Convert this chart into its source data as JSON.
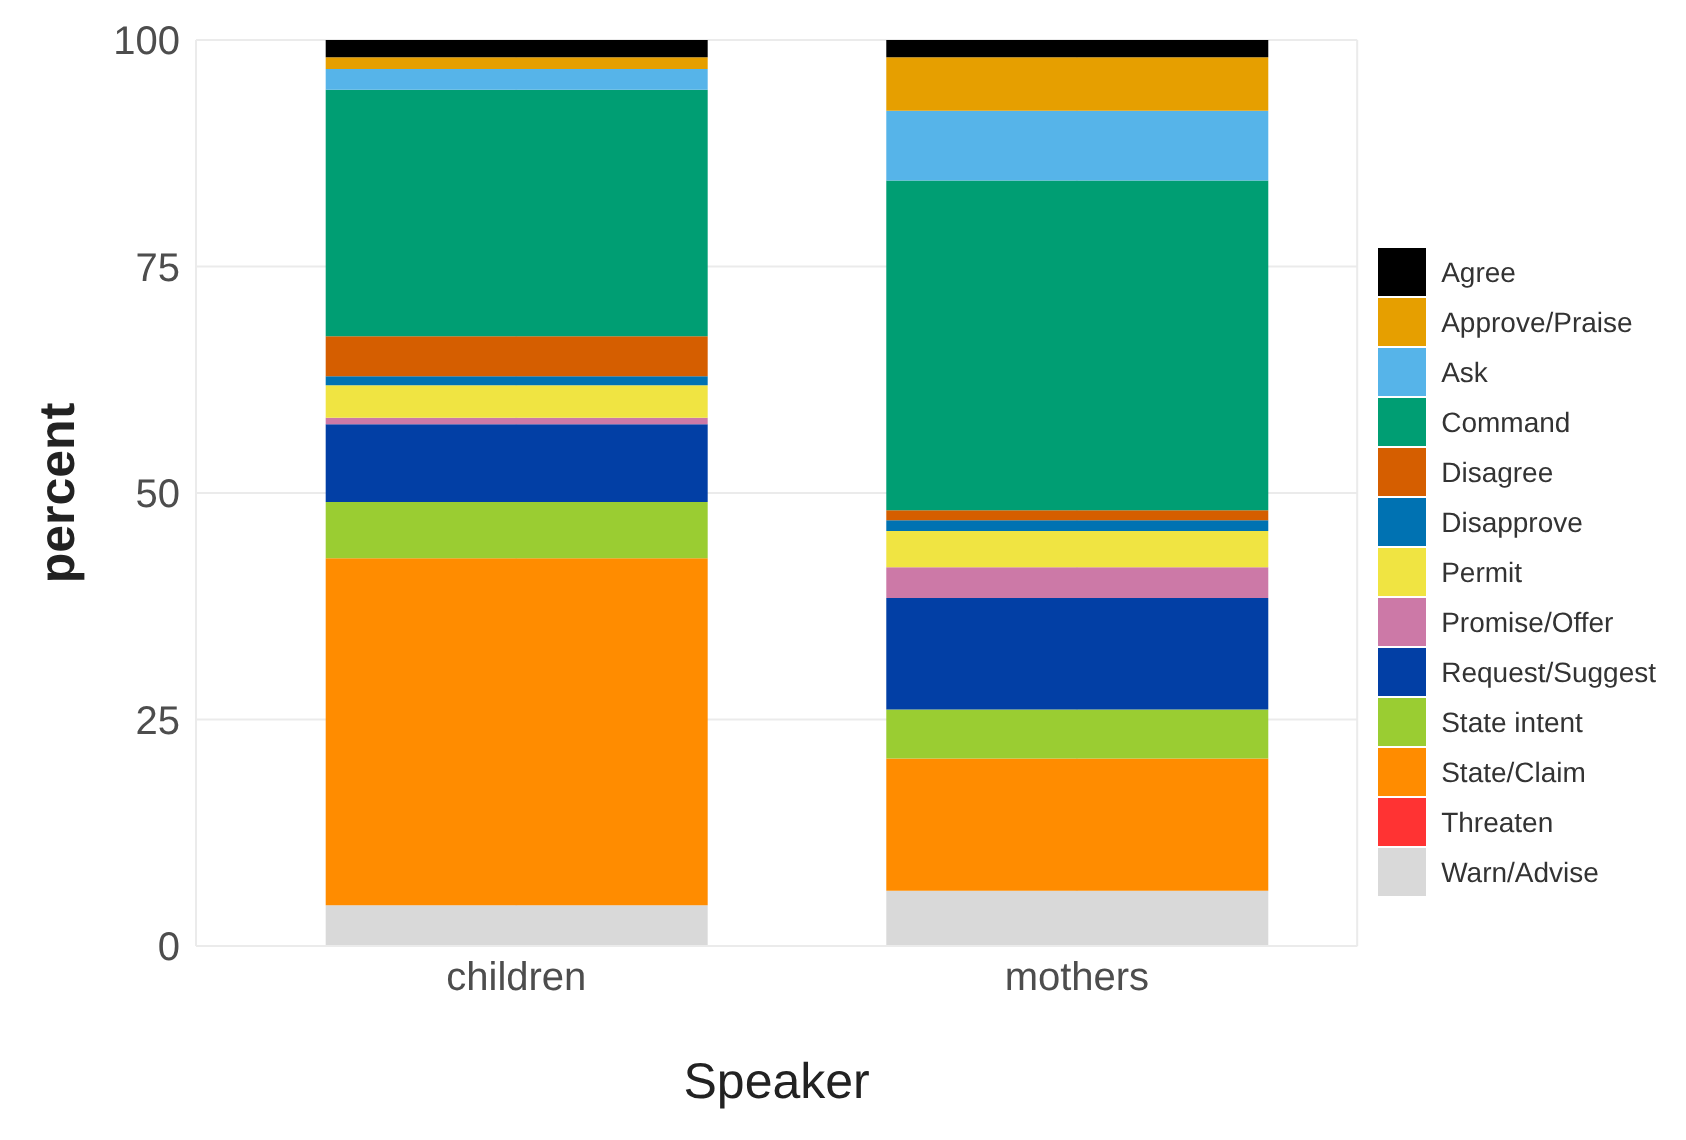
{
  "chart_data": {
    "type": "bar",
    "stacked": true,
    "xlabel": "Speaker",
    "ylabel": "percent",
    "categories": [
      "children",
      "mothers"
    ],
    "ylim": [
      0,
      100
    ],
    "yticks": [
      0,
      25,
      50,
      75,
      100
    ],
    "grid": true,
    "legend": "right",
    "series": [
      {
        "name": "Warn/Advise",
        "color": "#d9d9d9",
        "values": [
          4.5,
          6.1
        ]
      },
      {
        "name": "Threaten",
        "color": "#ff3333",
        "values": [
          0,
          0
        ]
      },
      {
        "name": "State/Claim",
        "color": "#ff8c00",
        "values": [
          38.3,
          14.6
        ]
      },
      {
        "name": "State intent",
        "color": "#9acd32",
        "values": [
          6.2,
          5.4
        ]
      },
      {
        "name": "Request/Suggest",
        "color": "#023fa5",
        "values": [
          8.6,
          12.3
        ]
      },
      {
        "name": "Promise/Offer",
        "color": "#cc79a7",
        "values": [
          0.7,
          3.4
        ]
      },
      {
        "name": "Permit",
        "color": "#f0e442",
        "values": [
          3.6,
          4.0
        ]
      },
      {
        "name": "Disapprove",
        "color": "#0072b2",
        "values": [
          1.0,
          1.2
        ]
      },
      {
        "name": "Disagree",
        "color": "#d55e00",
        "values": [
          4.4,
          1.1
        ]
      },
      {
        "name": "Command",
        "color": "#009e73",
        "values": [
          27.2,
          36.4
        ]
      },
      {
        "name": "Ask",
        "color": "#56b4e9",
        "values": [
          2.3,
          7.7
        ]
      },
      {
        "name": "Approve/Praise",
        "color": "#e69f00",
        "values": [
          1.3,
          5.9
        ]
      },
      {
        "name": "Agree",
        "color": "#000000",
        "values": [
          1.9,
          1.9
        ]
      }
    ]
  }
}
